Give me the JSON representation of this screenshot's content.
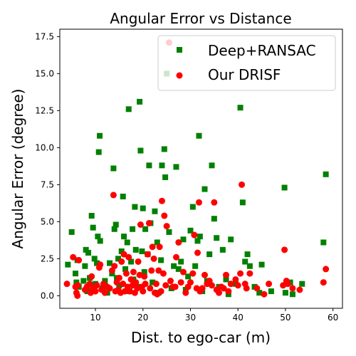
{
  "chart_data": {
    "type": "scatter",
    "title": "Angular Error vs Distance",
    "xlabel": "Dist. to ego-car (m)",
    "ylabel": "Angular Error (degree)",
    "xlim": [
      2.5,
      62
    ],
    "ylim": [
      -0.85,
      18.0
    ],
    "x_ticks": [
      10,
      20,
      30,
      40,
      50,
      60
    ],
    "y_ticks": [
      0.0,
      2.5,
      5.0,
      7.5,
      10.0,
      12.5,
      15.0,
      17.5
    ],
    "x_tick_labels": [
      "10",
      "20",
      "30",
      "40",
      "50",
      "60"
    ],
    "y_tick_labels": [
      "0.0",
      "2.5",
      "5.0",
      "7.5",
      "10.0",
      "12.5",
      "15.0",
      "17.5"
    ],
    "grid": false,
    "legend_position": "top-right",
    "series": [
      {
        "name": "Deep+RANSAC",
        "marker": "square",
        "color": "#008000",
        "points": [
          [
            4.2,
            2.1
          ],
          [
            5.0,
            4.3
          ],
          [
            5.8,
            1.5
          ],
          [
            6.0,
            0.9
          ],
          [
            6.2,
            2.4
          ],
          [
            6.5,
            0.6
          ],
          [
            7.5,
            1.0
          ],
          [
            7.8,
            2.0
          ],
          [
            8.0,
            3.1
          ],
          [
            8.3,
            0.3
          ],
          [
            8.5,
            2.9
          ],
          [
            8.8,
            1.2
          ],
          [
            9.2,
            5.4
          ],
          [
            9.5,
            4.6
          ],
          [
            9.8,
            2.5
          ],
          [
            10.0,
            0.8
          ],
          [
            10.3,
            2.2
          ],
          [
            10.5,
            4.0
          ],
          [
            10.7,
            9.7
          ],
          [
            10.9,
            10.8
          ],
          [
            11.0,
            3.7
          ],
          [
            11.5,
            0.5
          ],
          [
            12.0,
            1.0
          ],
          [
            12.5,
            0.2
          ],
          [
            13.0,
            2.2
          ],
          [
            13.5,
            1.5
          ],
          [
            13.8,
            8.6
          ],
          [
            14.0,
            4.5
          ],
          [
            14.3,
            4.8
          ],
          [
            14.5,
            1.2
          ],
          [
            14.8,
            2.5
          ],
          [
            15.0,
            0.7
          ],
          [
            15.5,
            3.0
          ],
          [
            15.8,
            6.7
          ],
          [
            16.0,
            4.0
          ],
          [
            16.3,
            1.8
          ],
          [
            16.7,
            3.6
          ],
          [
            17.0,
            12.6
          ],
          [
            17.2,
            0.3
          ],
          [
            17.5,
            2.3
          ],
          [
            17.8,
            4.5
          ],
          [
            18.0,
            1.1
          ],
          [
            18.3,
            6.0
          ],
          [
            18.5,
            3.1
          ],
          [
            19.0,
            0.6
          ],
          [
            19.3,
            13.1
          ],
          [
            19.5,
            9.8
          ],
          [
            19.8,
            3.0
          ],
          [
            20.0,
            5.9
          ],
          [
            20.3,
            1.6
          ],
          [
            20.5,
            4.5
          ],
          [
            21.0,
            2.8
          ],
          [
            21.3,
            8.8
          ],
          [
            21.6,
            4.9
          ],
          [
            22.0,
            0.9
          ],
          [
            22.5,
            5.7
          ],
          [
            23.0,
            3.6
          ],
          [
            23.3,
            0.2
          ],
          [
            23.8,
            2.4
          ],
          [
            24.0,
            8.8
          ],
          [
            24.5,
            9.9
          ],
          [
            24.7,
            8.0
          ],
          [
            25.0,
            15.0
          ],
          [
            25.5,
            4.3
          ],
          [
            26.0,
            0.5
          ],
          [
            26.5,
            2.0
          ],
          [
            27.0,
            8.7
          ],
          [
            27.5,
            1.8
          ],
          [
            28.0,
            2.3
          ],
          [
            28.5,
            3.8
          ],
          [
            29.0,
            0.4
          ],
          [
            29.5,
            1.3
          ],
          [
            30.0,
            4.4
          ],
          [
            30.5,
            6.0
          ],
          [
            31.0,
            2.0
          ],
          [
            31.5,
            3.7
          ],
          [
            31.8,
            10.8
          ],
          [
            32.0,
            4.0
          ],
          [
            32.5,
            0.3
          ],
          [
            33.0,
            7.2
          ],
          [
            33.5,
            1.0
          ],
          [
            34.0,
            2.8
          ],
          [
            34.5,
            8.8
          ],
          [
            35.0,
            5.2
          ],
          [
            35.5,
            3.9
          ],
          [
            36.0,
            0.6
          ],
          [
            36.8,
            3.1
          ],
          [
            37.5,
            1.1
          ],
          [
            38.0,
            0.1
          ],
          [
            38.5,
            3.8
          ],
          [
            39.5,
            0.8
          ],
          [
            40.5,
            12.7
          ],
          [
            41.0,
            6.3
          ],
          [
            41.5,
            2.3
          ],
          [
            42.0,
            2.8
          ],
          [
            42.5,
            2.0
          ],
          [
            43.5,
            0.6
          ],
          [
            44.5,
            0.2
          ],
          [
            45.0,
            2.1
          ],
          [
            47.0,
            0.3
          ],
          [
            49.8,
            7.3
          ],
          [
            50.0,
            0.2
          ],
          [
            51.0,
            0.9
          ],
          [
            51.5,
            0.1
          ],
          [
            53.5,
            0.8
          ],
          [
            58.0,
            3.6
          ],
          [
            58.5,
            8.2
          ]
        ]
      },
      {
        "name": "Our DRISF",
        "marker": "circle",
        "color": "#ff0000",
        "points": [
          [
            4.0,
            0.8
          ],
          [
            5.3,
            2.6
          ],
          [
            5.8,
            0.6
          ],
          [
            6.0,
            0.2
          ],
          [
            6.2,
            0.0
          ],
          [
            6.3,
            0.7
          ],
          [
            6.5,
            2.4
          ],
          [
            7.8,
            0.4
          ],
          [
            8.2,
            0.6
          ],
          [
            8.8,
            0.8
          ],
          [
            9.0,
            0.2
          ],
          [
            9.2,
            1.3
          ],
          [
            9.5,
            0.5
          ],
          [
            10.0,
            0.3
          ],
          [
            10.3,
            0.7
          ],
          [
            10.8,
            1.9
          ],
          [
            11.0,
            2.1
          ],
          [
            11.3,
            0.4
          ],
          [
            11.7,
            0.8
          ],
          [
            12.0,
            0.2
          ],
          [
            12.5,
            0.6
          ],
          [
            13.0,
            0.5
          ],
          [
            13.5,
            1.7
          ],
          [
            13.8,
            6.8
          ],
          [
            14.0,
            2.0
          ],
          [
            14.2,
            0.3
          ],
          [
            14.5,
            0.9
          ],
          [
            14.8,
            0.4
          ],
          [
            15.0,
            1.2
          ],
          [
            15.3,
            0.2
          ],
          [
            15.5,
            2.3
          ],
          [
            15.8,
            0.8
          ],
          [
            16.0,
            2.8
          ],
          [
            16.2,
            0.3
          ],
          [
            16.5,
            1.5
          ],
          [
            16.8,
            0.6
          ],
          [
            17.0,
            2.6
          ],
          [
            17.2,
            0.3
          ],
          [
            17.5,
            1.1
          ],
          [
            17.8,
            0.7
          ],
          [
            18.0,
            1.6
          ],
          [
            18.3,
            0.2
          ],
          [
            18.5,
            0.9
          ],
          [
            18.8,
            0.5
          ],
          [
            19.0,
            2.3
          ],
          [
            19.3,
            1.4
          ],
          [
            19.5,
            4.8
          ],
          [
            19.8,
            0.6
          ],
          [
            20.0,
            0.3
          ],
          [
            20.3,
            1.3
          ],
          [
            20.5,
            0.8
          ],
          [
            21.0,
            2.8
          ],
          [
            21.3,
            4.9
          ],
          [
            21.5,
            0.5
          ],
          [
            21.8,
            1.7
          ],
          [
            22.0,
            3.3
          ],
          [
            22.3,
            2.5
          ],
          [
            22.5,
            0.2
          ],
          [
            22.8,
            0.8
          ],
          [
            23.0,
            0.1
          ],
          [
            23.3,
            1.7
          ],
          [
            23.5,
            3.3
          ],
          [
            23.8,
            0.3
          ],
          [
            24.0,
            6.4
          ],
          [
            24.3,
            1.5
          ],
          [
            24.5,
            5.4
          ],
          [
            24.8,
            0.7
          ],
          [
            25.0,
            4.7
          ],
          [
            25.5,
            17.1
          ],
          [
            25.8,
            1.0
          ],
          [
            26.3,
            0.6
          ],
          [
            26.8,
            0.6
          ],
          [
            27.0,
            2.6
          ],
          [
            27.5,
            3.6
          ],
          [
            28.0,
            0.9
          ],
          [
            28.5,
            1.6
          ],
          [
            29.0,
            0.2
          ],
          [
            29.5,
            0.6
          ],
          [
            30.0,
            0.9
          ],
          [
            30.5,
            1.5
          ],
          [
            30.8,
            4.1
          ],
          [
            31.3,
            0.5
          ],
          [
            31.5,
            2.9
          ],
          [
            31.8,
            6.3
          ],
          [
            32.0,
            0.3
          ],
          [
            32.5,
            0.5
          ],
          [
            33.0,
            1.4
          ],
          [
            33.5,
            0.8
          ],
          [
            34.0,
            1.0
          ],
          [
            34.5,
            0.7
          ],
          [
            35.0,
            6.3
          ],
          [
            35.5,
            0.4
          ],
          [
            36.0,
            0.2
          ],
          [
            36.5,
            0.6
          ],
          [
            37.0,
            0.5
          ],
          [
            37.5,
            1.4
          ],
          [
            38.0,
            0.3
          ],
          [
            38.5,
            0.8
          ],
          [
            39.5,
            1.1
          ],
          [
            40.0,
            0.7
          ],
          [
            40.5,
            1.5
          ],
          [
            40.8,
            7.5
          ],
          [
            41.5,
            0.8
          ],
          [
            41.8,
            0.5
          ],
          [
            42.5,
            1.5
          ],
          [
            44.0,
            0.5
          ],
          [
            45.5,
            0.1
          ],
          [
            46.5,
            0.8
          ],
          [
            49.5,
            0.7
          ],
          [
            49.8,
            3.1
          ],
          [
            50.2,
            1.0
          ],
          [
            50.5,
            0.8
          ],
          [
            51.5,
            0.5
          ],
          [
            53.0,
            0.4
          ],
          [
            58.0,
            0.9
          ],
          [
            58.5,
            1.8
          ]
        ]
      }
    ]
  }
}
